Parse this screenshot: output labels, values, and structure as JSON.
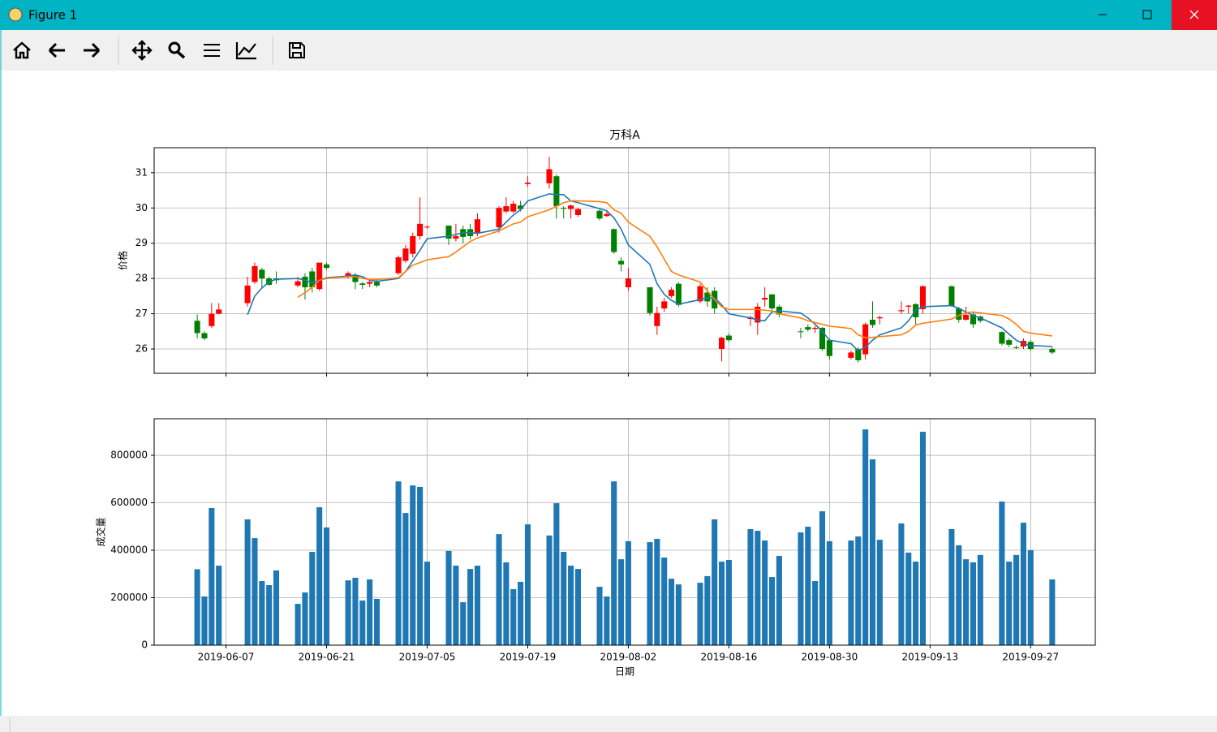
{
  "window": {
    "title": "Figure 1"
  },
  "chart_data": [
    {
      "type": "candlestick",
      "title": "万科A",
      "ylabel": "价格",
      "up_color": "red",
      "down_color": "green",
      "ylim": [
        25.31,
        31.71
      ],
      "yticks": [
        26,
        27,
        28,
        29,
        30,
        31
      ],
      "grid": true,
      "x": [
        "2019-06-03",
        "2019-06-04",
        "2019-06-05",
        "2019-06-06",
        "2019-06-10",
        "2019-06-11",
        "2019-06-12",
        "2019-06-13",
        "2019-06-14",
        "2019-06-17",
        "2019-06-18",
        "2019-06-19",
        "2019-06-20",
        "2019-06-21",
        "2019-06-24",
        "2019-06-25",
        "2019-06-26",
        "2019-06-27",
        "2019-06-28",
        "2019-07-01",
        "2019-07-02",
        "2019-07-03",
        "2019-07-04",
        "2019-07-05",
        "2019-07-08",
        "2019-07-09",
        "2019-07-10",
        "2019-07-11",
        "2019-07-12",
        "2019-07-15",
        "2019-07-16",
        "2019-07-17",
        "2019-07-18",
        "2019-07-19",
        "2019-07-22",
        "2019-07-23",
        "2019-07-24",
        "2019-07-25",
        "2019-07-26",
        "2019-07-29",
        "2019-07-30",
        "2019-07-31",
        "2019-08-01",
        "2019-08-02",
        "2019-08-05",
        "2019-08-06",
        "2019-08-07",
        "2019-08-08",
        "2019-08-09",
        "2019-08-12",
        "2019-08-13",
        "2019-08-14",
        "2019-08-15",
        "2019-08-16",
        "2019-08-19",
        "2019-08-20",
        "2019-08-21",
        "2019-08-22",
        "2019-08-23",
        "2019-08-26",
        "2019-08-27",
        "2019-08-28",
        "2019-08-29",
        "2019-08-30",
        "2019-09-02",
        "2019-09-03",
        "2019-09-04",
        "2019-09-05",
        "2019-09-06",
        "2019-09-09",
        "2019-09-10",
        "2019-09-11",
        "2019-09-12",
        "2019-09-16",
        "2019-09-17",
        "2019-09-18",
        "2019-09-19",
        "2019-09-20",
        "2019-09-23",
        "2019-09-24",
        "2019-09-25",
        "2019-09-26",
        "2019-09-27",
        "2019-09-30"
      ],
      "open": [
        26.8,
        26.45,
        26.65,
        27.0,
        27.3,
        27.9,
        28.25,
        28.0,
        28.0,
        27.8,
        28.05,
        28.2,
        27.7,
        28.4,
        28.08,
        28.1,
        27.86,
        27.85,
        27.9,
        28.15,
        28.5,
        28.7,
        29.2,
        29.45,
        29.5,
        29.13,
        29.4,
        29.4,
        29.3,
        29.45,
        29.9,
        29.9,
        30.07,
        30.68,
        30.7,
        30.9,
        30.0,
        29.97,
        29.8,
        29.92,
        29.77,
        29.4,
        28.5,
        27.75,
        27.75,
        26.65,
        27.15,
        27.5,
        27.85,
        27.35,
        27.6,
        27.65,
        26.0,
        26.38,
        26.85,
        26.75,
        27.4,
        27.55,
        27.2,
        26.5,
        26.62,
        26.57,
        26.6,
        26.25,
        25.75,
        26.0,
        25.85,
        26.83,
        26.87,
        27.07,
        27.2,
        27.27,
        27.13,
        27.78,
        27.15,
        26.83,
        26.98,
        26.92,
        26.48,
        26.25,
        26.05,
        26.07,
        26.2,
        26.0
      ],
      "high": [
        26.98,
        26.5,
        27.3,
        27.3,
        28.05,
        28.45,
        28.3,
        28.05,
        28.2,
        28.05,
        28.15,
        28.3,
        28.45,
        28.45,
        28.2,
        28.15,
        27.9,
        27.95,
        27.95,
        28.65,
        28.95,
        29.3,
        30.3,
        29.5,
        29.5,
        29.55,
        29.5,
        29.55,
        29.85,
        30.05,
        30.3,
        30.2,
        30.2,
        30.9,
        31.45,
        30.95,
        30.05,
        30.1,
        30.0,
        29.95,
        29.9,
        29.42,
        28.6,
        28.3,
        27.75,
        27.2,
        27.45,
        27.75,
        27.9,
        27.85,
        27.75,
        27.75,
        26.35,
        26.45,
        26.95,
        27.3,
        27.75,
        27.55,
        27.25,
        26.6,
        26.7,
        26.65,
        26.62,
        26.3,
        25.95,
        26.05,
        26.75,
        27.35,
        26.95,
        27.35,
        27.25,
        27.3,
        27.8,
        27.8,
        27.2,
        27.2,
        27.05,
        26.95,
        26.5,
        26.3,
        26.1,
        26.3,
        26.25,
        26.05
      ],
      "low": [
        26.3,
        26.25,
        26.6,
        26.98,
        27.2,
        27.85,
        27.75,
        27.8,
        27.85,
        27.75,
        27.4,
        27.6,
        27.65,
        28.25,
        28.0,
        27.7,
        27.7,
        27.75,
        27.75,
        28.1,
        28.45,
        28.6,
        29.1,
        29.4,
        28.95,
        29.05,
        29.0,
        29.1,
        29.2,
        29.3,
        29.85,
        29.85,
        29.9,
        30.6,
        30.55,
        29.7,
        29.7,
        29.7,
        29.75,
        29.65,
        29.75,
        28.7,
        28.2,
        27.65,
        26.95,
        26.4,
        27.05,
        27.45,
        27.2,
        27.3,
        27.2,
        27.0,
        25.65,
        26.2,
        26.65,
        26.4,
        27.2,
        27.1,
        26.9,
        26.3,
        26.5,
        26.45,
        25.95,
        25.7,
        25.7,
        25.62,
        25.7,
        26.6,
        26.7,
        27.0,
        27.0,
        26.7,
        27.0,
        27.2,
        26.75,
        26.8,
        26.6,
        26.75,
        26.1,
        26.05,
        26.0,
        26.0,
        25.95,
        25.85
      ],
      "close": [
        26.45,
        26.3,
        27.0,
        27.12,
        27.8,
        28.35,
        28.0,
        27.82,
        27.95,
        27.92,
        27.75,
        27.75,
        28.45,
        28.3,
        28.15,
        27.9,
        27.82,
        27.9,
        27.8,
        28.6,
        28.85,
        29.2,
        29.55,
        29.47,
        29.13,
        29.2,
        29.18,
        29.2,
        29.68,
        30.0,
        30.05,
        30.12,
        29.97,
        30.72,
        31.1,
        30.05,
        29.98,
        30.07,
        29.97,
        29.7,
        29.83,
        28.75,
        28.4,
        28.0,
        27.02,
        27.02,
        27.35,
        27.68,
        27.25,
        27.78,
        27.35,
        27.15,
        26.32,
        26.25,
        26.9,
        27.2,
        27.45,
        27.15,
        26.98,
        26.48,
        26.55,
        26.6,
        26.0,
        25.8,
        25.9,
        25.68,
        26.7,
        26.68,
        26.9,
        27.1,
        27.23,
        26.9,
        27.78,
        27.22,
        26.83,
        26.97,
        26.7,
        26.8,
        26.15,
        26.12,
        26.03,
        26.23,
        26.0,
        25.9
      ],
      "lines": [
        {
          "color": "#1f77b4",
          "values": [
            null,
            null,
            null,
            null,
            26.97,
            27.5,
            27.73,
            27.9,
            27.98,
            28.0,
            27.95,
            27.88,
            27.95,
            28.02,
            28.07,
            28.1,
            28.05,
            27.95,
            27.92,
            28.0,
            28.2,
            28.5,
            28.8,
            29.13,
            29.2,
            29.25,
            29.3,
            29.3,
            29.28,
            29.4,
            29.6,
            29.8,
            29.95,
            30.2,
            30.4,
            30.38,
            30.38,
            30.2,
            30.15,
            29.98,
            29.92,
            29.72,
            29.4,
            28.95,
            28.4,
            27.85,
            27.55,
            27.38,
            27.27,
            27.4,
            27.45,
            27.45,
            27.25,
            27.0,
            26.88,
            26.82,
            26.8,
            27.05,
            27.08,
            27.02,
            26.88,
            26.7,
            26.5,
            26.25,
            26.15,
            25.95,
            26.05,
            26.25,
            26.4,
            26.6,
            26.8,
            27.1,
            27.2,
            27.23,
            27.15,
            27.05,
            26.95,
            26.88,
            26.6,
            26.42,
            26.25,
            26.15,
            26.1,
            26.07
          ]
        },
        {
          "color": "#ff7f0e",
          "values": [
            null,
            null,
            null,
            null,
            null,
            null,
            null,
            null,
            null,
            27.47,
            27.6,
            27.75,
            27.95,
            28.0,
            28.05,
            28.05,
            28.0,
            27.97,
            27.97,
            28.02,
            28.2,
            28.38,
            28.45,
            28.53,
            28.62,
            28.75,
            28.9,
            29.05,
            29.15,
            29.35,
            29.45,
            29.55,
            29.6,
            29.75,
            29.95,
            30.05,
            30.15,
            30.2,
            30.2,
            30.18,
            30.15,
            29.95,
            29.85,
            29.6,
            29.2,
            28.9,
            28.55,
            28.2,
            28.1,
            27.9,
            27.65,
            27.4,
            27.2,
            27.12,
            27.12,
            27.12,
            27.1,
            27.08,
            27.0,
            26.88,
            26.8,
            26.75,
            26.7,
            26.65,
            26.58,
            26.4,
            26.32,
            26.33,
            26.35,
            26.4,
            26.5,
            26.68,
            26.73,
            26.85,
            26.95,
            27.03,
            27.05,
            27.02,
            26.95,
            26.85,
            26.7,
            26.5,
            26.45,
            26.37
          ]
        }
      ]
    },
    {
      "type": "bar",
      "xlabel": "日期",
      "ylabel": "成交量",
      "color": "#1f77b4",
      "xlim": [
        "2019-05-28",
        "2019-10-06"
      ],
      "xticks": [
        "2019-06-07",
        "2019-06-21",
        "2019-07-05",
        "2019-07-19",
        "2019-08-02",
        "2019-08-16",
        "2019-08-30",
        "2019-09-13",
        "2019-09-27"
      ],
      "ylim": [
        0,
        954000
      ],
      "yticks": [
        0,
        200000,
        400000,
        600000,
        800000
      ],
      "grid": true,
      "values": [
        320000,
        205000,
        578000,
        335000,
        530000,
        451000,
        270000,
        253000,
        315000,
        174000,
        222000,
        393000,
        581000,
        496000,
        273000,
        284000,
        188000,
        277000,
        195000,
        690000,
        557000,
        673000,
        667000,
        352000,
        397000,
        335000,
        181000,
        321000,
        335000,
        468000,
        349000,
        236000,
        267000,
        509000,
        462000,
        598000,
        393000,
        335000,
        321000,
        246000,
        205000,
        690000,
        362000,
        438000,
        434000,
        448000,
        369000,
        280000,
        256000,
        263000,
        291000,
        530000,
        352000,
        359000,
        489000,
        482000,
        441000,
        287000,
        376000,
        475000,
        499000,
        270000,
        564000,
        438000,
        441000,
        458000,
        909000,
        783000,
        444000,
        513000,
        390000,
        352000,
        899000,
        489000,
        421000,
        362000,
        349000,
        380000,
        605000,
        352000,
        380000,
        516000,
        400000,
        277000
      ]
    }
  ]
}
